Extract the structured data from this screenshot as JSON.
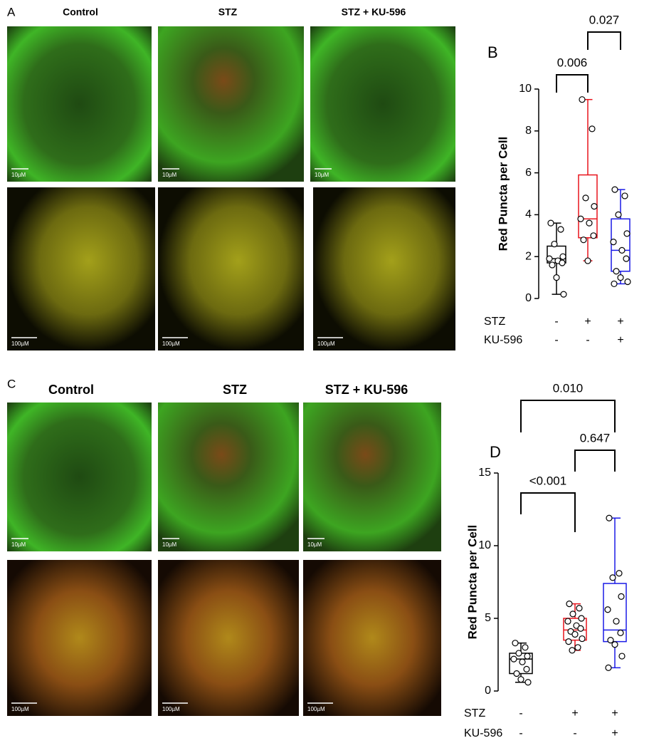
{
  "figure": {
    "A": {
      "label": "A",
      "columns": [
        "Control",
        "STZ",
        "STZ + KU-596"
      ],
      "scale_bars": [
        [
          "10µM",
          "10µM",
          "10µM"
        ],
        [
          "100µM",
          "100µM",
          "100µM"
        ]
      ]
    },
    "C": {
      "label": "C",
      "columns": [
        "Control",
        "STZ",
        "STZ + KU-596"
      ],
      "scale_bars": [
        [
          "10µM",
          "10µM",
          "10µM"
        ],
        [
          "100µM",
          "100µM",
          "100µM"
        ]
      ]
    }
  },
  "chart_data": [
    {
      "type": "box",
      "panel_label": "B",
      "ylabel": "Red Puncta per Cell",
      "ylim": [
        0,
        10
      ],
      "yticks": [
        0,
        2,
        4,
        6,
        8,
        10
      ],
      "categories": [
        null,
        null,
        null
      ],
      "boxes": [
        {
          "color": "#000000",
          "min": 0.2,
          "q1": 1.7,
          "median": 1.9,
          "q3": 2.5,
          "max": 3.6,
          "points": [
            3.6,
            3.3,
            2.6,
            2.0,
            1.9,
            1.8,
            1.7,
            1.6,
            1.0,
            0.2
          ]
        },
        {
          "color": "#e8141c",
          "min": 1.8,
          "q1": 2.9,
          "median": 3.8,
          "q3": 5.9,
          "max": 9.5,
          "points": [
            9.5,
            8.1,
            4.8,
            4.4,
            3.8,
            3.6,
            3.0,
            2.8,
            1.8
          ]
        },
        {
          "color": "#1a1ae6",
          "min": 0.7,
          "q1": 1.3,
          "median": 2.3,
          "q3": 3.8,
          "max": 5.2,
          "points": [
            5.2,
            4.9,
            4.0,
            3.1,
            2.7,
            2.3,
            1.9,
            1.3,
            1.0,
            0.8,
            0.7
          ]
        }
      ],
      "rows": [
        {
          "name": "STZ",
          "marks": [
            "-",
            "+",
            "+"
          ]
        },
        {
          "name": "KU-596",
          "marks": [
            "-",
            "-",
            "+"
          ]
        }
      ],
      "comparisons": [
        "0.006",
        "0.027"
      ]
    },
    {
      "type": "box",
      "panel_label": "D",
      "ylabel": "Red Puncta per Cell",
      "ylim": [
        0,
        15
      ],
      "yticks": [
        0,
        5,
        10,
        15
      ],
      "categories": [
        null,
        null,
        null
      ],
      "boxes": [
        {
          "color": "#000000",
          "min": 0.6,
          "q1": 1.2,
          "median": 2.2,
          "q3": 2.6,
          "max": 3.3,
          "points": [
            3.3,
            3.0,
            2.6,
            2.4,
            2.2,
            2.0,
            1.5,
            1.2,
            0.8,
            0.6
          ]
        },
        {
          "color": "#e8141c",
          "min": 2.8,
          "q1": 3.5,
          "median": 4.2,
          "q3": 5.0,
          "max": 6.0,
          "points": [
            6.0,
            5.7,
            5.3,
            5.0,
            4.8,
            4.5,
            4.3,
            4.1,
            3.9,
            3.6,
            3.4,
            3.0,
            2.8
          ]
        },
        {
          "color": "#1a1ae6",
          "min": 1.6,
          "q1": 3.4,
          "median": 4.2,
          "q3": 7.4,
          "max": 11.9,
          "points": [
            11.9,
            8.1,
            7.8,
            6.5,
            5.6,
            4.8,
            4.0,
            3.5,
            3.2,
            2.4,
            1.6
          ]
        }
      ],
      "rows": [
        {
          "name": "STZ",
          "marks": [
            "-",
            "+",
            "+"
          ]
        },
        {
          "name": "KU-596",
          "marks": [
            "-",
            "-",
            "+"
          ]
        }
      ],
      "comparisons": [
        "0.010",
        "0.647",
        "<0.001"
      ]
    }
  ]
}
